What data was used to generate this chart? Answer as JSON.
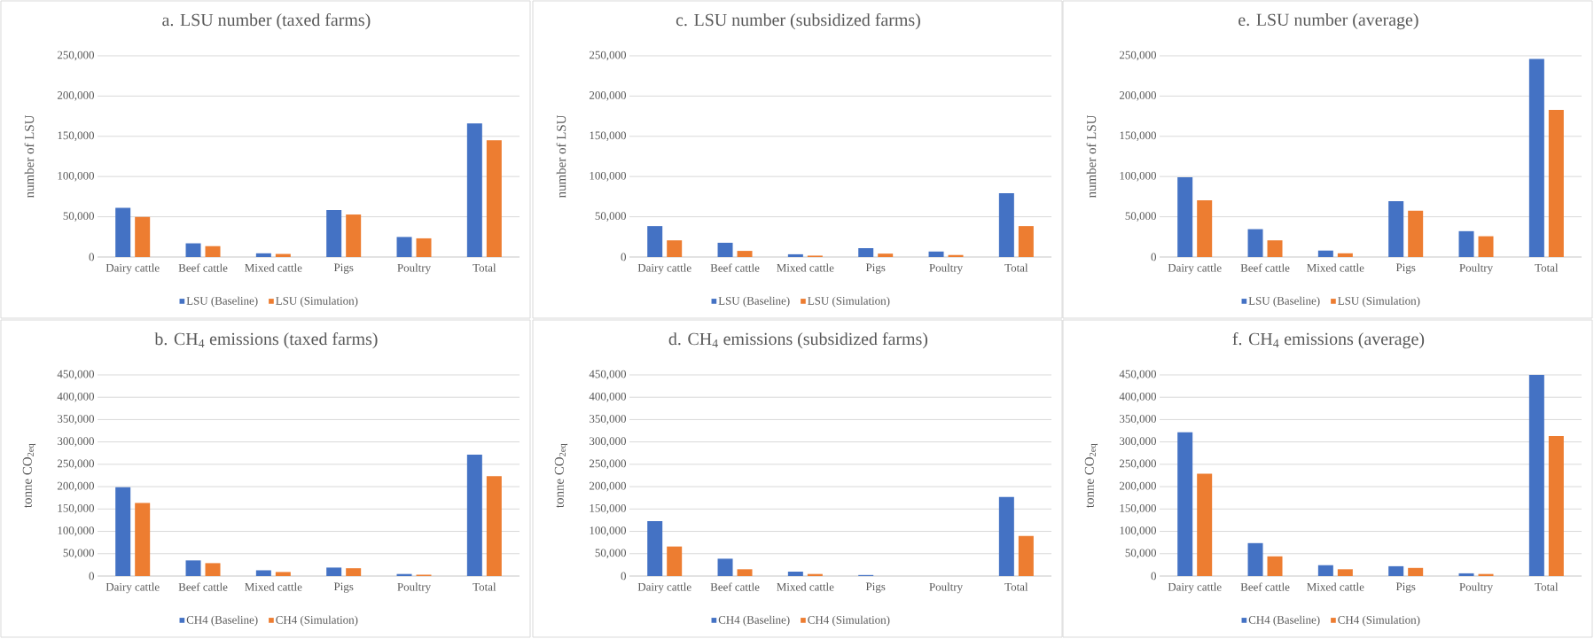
{
  "chart_data": [
    {
      "type": "bar",
      "title": "a. LSU number (taxed farms)",
      "ylabel": "number of LSU",
      "categories": [
        "Dairy cattle",
        "Beef cattle",
        "Mixed cattle",
        "Pigs",
        "Poultry",
        "Total"
      ],
      "series": [
        {
          "name": "LSU (Baseline)",
          "color": "#4472c4",
          "values": [
            61000,
            17000,
            4600,
            58300,
            24900,
            166000
          ]
        },
        {
          "name": "LSU (Simulation)",
          "color": "#ed7d31",
          "values": [
            49800,
            13500,
            3800,
            52800,
            23200,
            145000
          ]
        }
      ],
      "ylim": [
        0,
        250000
      ],
      "yticks": [
        0,
        {
          "value": 50000,
          "label": "50,000"
        },
        {
          "value": 100000,
          "label": "100,000"
        },
        {
          "value": 150000,
          "label": "150,000"
        },
        {
          "value": 200000,
          "label": "200,000"
        },
        {
          "value": 250000,
          "label": "250,000"
        }
      ],
      "grid": "y",
      "legend": "bottom"
    },
    {
      "type": "bar",
      "title": "c. LSU number (subsidized farms)",
      "ylabel": "number of LSU",
      "categories": [
        "Dairy cattle",
        "Beef cattle",
        "Mixed cattle",
        "Pigs",
        "Poultry",
        "Total"
      ],
      "series": [
        {
          "name": "LSU (Baseline)",
          "color": "#4472c4",
          "values": [
            38400,
            17700,
            3400,
            11000,
            6800,
            79400
          ]
        },
        {
          "name": "LSU (Simulation)",
          "color": "#ed7d31",
          "values": [
            20700,
            7600,
            1700,
            4200,
            2500,
            38400
          ]
        }
      ],
      "ylim": [
        0,
        250000
      ],
      "yticks": [
        0,
        {
          "value": 50000,
          "label": "50,000"
        },
        {
          "value": 100000,
          "label": "100,000"
        },
        {
          "value": 150000,
          "label": "150,000"
        },
        {
          "value": 200000,
          "label": "200,000"
        },
        {
          "value": 250000,
          "label": "250,000"
        }
      ],
      "grid": "y",
      "legend": "bottom"
    },
    {
      "type": "bar",
      "title": "e. LSU number (average)",
      "ylabel": "number of LSU",
      "categories": [
        "Dairy cattle",
        "Beef cattle",
        "Mixed cattle",
        "Pigs",
        "Poultry",
        "Total"
      ],
      "series": [
        {
          "name": "LSU (Baseline)",
          "color": "#4472c4",
          "values": [
            99200,
            34600,
            8000,
            69300,
            32100,
            246200
          ]
        },
        {
          "name": "LSU (Simulation)",
          "color": "#ed7d31",
          "values": [
            70500,
            20700,
            4600,
            57400,
            25800,
            182900
          ]
        }
      ],
      "ylim": [
        0,
        250000
      ],
      "yticks": [
        0,
        {
          "value": 50000,
          "label": "50,000"
        },
        {
          "value": 100000,
          "label": "100,000"
        },
        {
          "value": 150000,
          "label": "150,000"
        },
        {
          "value": 200000,
          "label": "200,000"
        },
        {
          "value": 250000,
          "label": "250,000"
        }
      ],
      "grid": "y",
      "legend": "bottom"
    },
    {
      "type": "bar",
      "title": "b. CH$_{4}$ emissions (taxed farms)",
      "ylabel": "tonne CO$_{2eq}$",
      "categories": [
        "Dairy cattle",
        "Beef cattle",
        "Mixed cattle",
        "Pigs",
        "Poultry",
        "Total"
      ],
      "series": [
        {
          "name": "CH4 (Baseline)",
          "color": "#4472c4",
          "values": [
            198600,
            35000,
            12900,
            19000,
            4600,
            271700
          ]
        },
        {
          "name": "CH4 (Simulation)",
          "color": "#ed7d31",
          "values": [
            163600,
            28900,
            9100,
            17500,
            3000,
            223700
          ]
        }
      ],
      "ylim": [
        0,
        450000
      ],
      "yticks": [
        0,
        {
          "value": 50000,
          "label": "50,000"
        },
        {
          "value": 100000,
          "label": "100,000"
        },
        {
          "value": 150000,
          "label": "150,000"
        },
        {
          "value": 200000,
          "label": "200,000"
        },
        {
          "value": 250000,
          "label": "250,000"
        },
        {
          "value": 300000,
          "label": "300,000"
        },
        {
          "value": 350000,
          "label": "350,000"
        },
        {
          "value": 400000,
          "label": "400,000"
        },
        {
          "value": 450000,
          "label": "450,000"
        }
      ],
      "grid": "y",
      "legend": "bottom"
    },
    {
      "type": "bar",
      "title": "d. CH$_{4}$ emissions (subsidized farms)",
      "ylabel": "tonne CO$_{2eq}$",
      "categories": [
        "Dairy cattle",
        "Beef cattle",
        "Mixed cattle",
        "Pigs",
        "Poultry",
        "Total"
      ],
      "series": [
        {
          "name": "CH4 (Baseline)",
          "color": "#4472c4",
          "values": [
            123100,
            38800,
            9900,
            2300,
            0,
            177000
          ]
        },
        {
          "name": "CH4 (Simulation)",
          "color": "#ed7d31",
          "values": [
            66100,
            15200,
            4600,
            0,
            0,
            89700
          ]
        }
      ],
      "ylim": [
        0,
        450000
      ],
      "yticks": [
        0,
        {
          "value": 50000,
          "label": "50,000"
        },
        {
          "value": 100000,
          "label": "100,000"
        },
        {
          "value": 150000,
          "label": "150,000"
        },
        {
          "value": 200000,
          "label": "200,000"
        },
        {
          "value": 250000,
          "label": "250,000"
        },
        {
          "value": 300000,
          "label": "300,000"
        },
        {
          "value": 350000,
          "label": "350,000"
        },
        {
          "value": 400000,
          "label": "400,000"
        },
        {
          "value": 450000,
          "label": "450,000"
        }
      ],
      "grid": "y",
      "legend": "bottom"
    },
    {
      "type": "bar",
      "title": "f. CH$_{4}$ emissions (average)",
      "ylabel": "tonne CO$_{2eq}$",
      "categories": [
        "Dairy cattle",
        "Beef cattle",
        "Mixed cattle",
        "Pigs",
        "Poultry",
        "Total"
      ],
      "series": [
        {
          "name": "CH4 (Baseline)",
          "color": "#4472c4",
          "values": [
            321500,
            73700,
            24300,
            22000,
            6100,
            450000
          ]
        },
        {
          "name": "CH4 (Simulation)",
          "color": "#ed7d31",
          "values": [
            228700,
            44100,
            15200,
            18200,
            4600,
            313100
          ]
        }
      ],
      "ylim": [
        0,
        450000
      ],
      "yticks": [
        0,
        {
          "value": 50000,
          "label": "50,000"
        },
        {
          "value": 100000,
          "label": "100,000"
        },
        {
          "value": 150000,
          "label": "150,000"
        },
        {
          "value": 200000,
          "label": "200,000"
        },
        {
          "value": 250000,
          "label": "250,000"
        },
        {
          "value": 300000,
          "label": "300,000"
        },
        {
          "value": 350000,
          "label": "350,000"
        },
        {
          "value": 400000,
          "label": "400,000"
        },
        {
          "value": 450000,
          "label": "450,000"
        }
      ],
      "grid": "y",
      "legend": "bottom"
    }
  ]
}
